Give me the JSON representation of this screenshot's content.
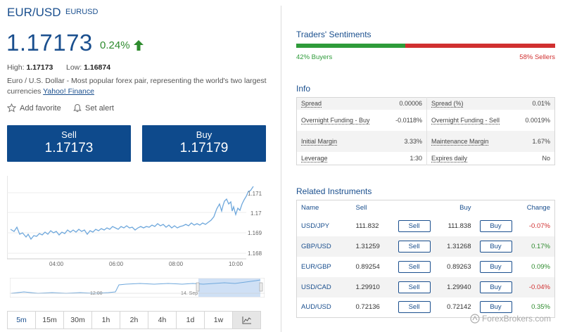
{
  "instrument": {
    "title": "EUR/USD",
    "code": "EURUSD",
    "price": "1.17173",
    "change_pct": "0.24%",
    "high_label": "High:",
    "high_value": "1.17173",
    "low_label": "Low:",
    "low_value": "1.16874",
    "description": "Euro / U.S. Dollar - Most popular forex pair, representing the world's two largest currencies",
    "source_link": "Yahoo! Finance"
  },
  "actions": {
    "add_favorite": "Add favorite",
    "set_alert": "Set alert"
  },
  "trade": {
    "sell_label": "Sell",
    "sell_price": "1.17173",
    "buy_label": "Buy",
    "buy_price": "1.17179"
  },
  "chart": {
    "y_ticks": [
      "1.171",
      "1.17",
      "1.169",
      "1.168"
    ],
    "x_ticks": [
      "04:00",
      "06:00",
      "08:00",
      "10:00"
    ],
    "nav_labels": [
      "12:00",
      "14. Sep"
    ],
    "colors": {
      "line": "#6fa8dc",
      "nav_fill": "#cfe0f5"
    }
  },
  "timeframes": [
    "5m",
    "15m",
    "30m",
    "1h",
    "2h",
    "4h",
    "1d",
    "1w"
  ],
  "active_timeframe": "5m",
  "sentiment": {
    "title": "Traders' Sentiments",
    "buyers": "42% Buyers",
    "sellers": "58% Sellers",
    "buyers_fraction": 0.42,
    "colors": {
      "buy": "#2e9b3a",
      "sell": "#d03030"
    }
  },
  "info": {
    "title": "Info",
    "rows": [
      {
        "k1": "Spread",
        "v1": "0.00006",
        "k2": "Spread (%)",
        "v2": "0.01%"
      },
      {
        "k1": "Overnight Funding - Buy",
        "v1": "-0.0118%",
        "k2": "Overnight Funding - Sell",
        "v2": "0.0019%"
      },
      {
        "k1": "Initial Margin",
        "v1": "3.33%",
        "k2": "Maintenance Margin",
        "v2": "1.67%"
      },
      {
        "k1": "Leverage",
        "v1": "1:30",
        "k2": "Expires daily",
        "v2": "No"
      }
    ]
  },
  "related": {
    "title": "Related Instruments",
    "headers": {
      "name": "Name",
      "sell": "Sell",
      "buy": "Buy",
      "change": "Change"
    },
    "sell_btn": "Sell",
    "buy_btn": "Buy",
    "rows": [
      {
        "name": "USD/JPY",
        "sell": "111.832",
        "buy": "111.838",
        "change": "-0.07%"
      },
      {
        "name": "GBP/USD",
        "sell": "1.31259",
        "buy": "1.31268",
        "change": "0.17%"
      },
      {
        "name": "EUR/GBP",
        "sell": "0.89254",
        "buy": "0.89263",
        "change": "0.09%"
      },
      {
        "name": "USD/CAD",
        "sell": "1.29910",
        "buy": "1.29940",
        "change": "-0.04%"
      },
      {
        "name": "AUD/USD",
        "sell": "0.72136",
        "buy": "0.72142",
        "change": "0.35%"
      }
    ]
  },
  "watermark": "ForexBrokers.com"
}
